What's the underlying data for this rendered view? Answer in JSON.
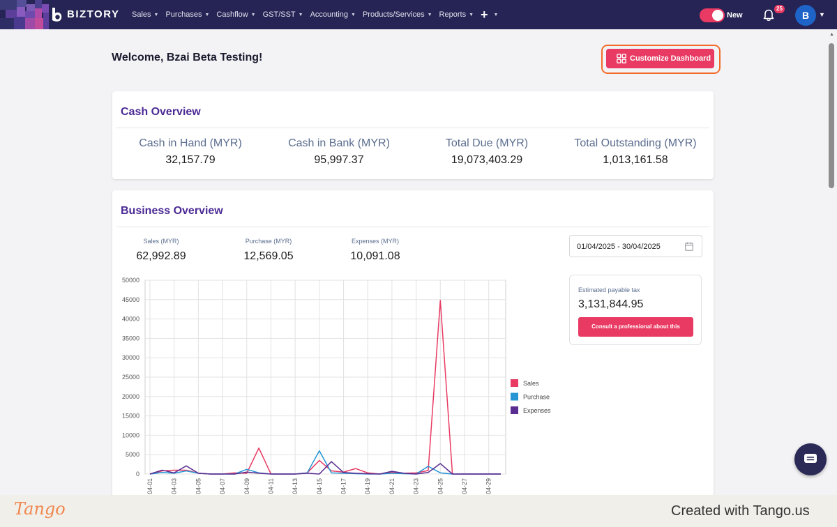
{
  "app": {
    "logo_text": "BIZTORY",
    "toggle_label": "New",
    "notification_count": "25",
    "avatar_initial": "B"
  },
  "nav": {
    "items": [
      "Sales",
      "Purchases",
      "Cashflow",
      "GST/SST",
      "Accounting",
      "Products/Services",
      "Reports"
    ],
    "plus": "+"
  },
  "page": {
    "welcome": "Welcome, Bzai Beta Testing!",
    "customize_label": "Customize Dashboard"
  },
  "cash_overview": {
    "title": "Cash Overview",
    "stats": [
      {
        "label": "Cash in Hand (MYR)",
        "value": "32,157.79"
      },
      {
        "label": "Cash in Bank (MYR)",
        "value": "95,997.37"
      },
      {
        "label": "Total Due (MYR)",
        "value": "19,073,403.29"
      },
      {
        "label": "Total Outstanding (MYR)",
        "value": "1,013,161.58"
      }
    ]
  },
  "business_overview": {
    "title": "Business Overview",
    "stats": [
      {
        "label": "Sales (MYR)",
        "value": "62,992.89"
      },
      {
        "label": "Purchase (MYR)",
        "value": "12,569.05"
      },
      {
        "label": "Expenses (MYR)",
        "value": "10,091.08"
      }
    ],
    "date_range": "01/04/2025 - 30/04/2025",
    "tax_label": "Estimated payable tax",
    "tax_value": "3,131,844.95",
    "tax_button": "Consult a professional about this"
  },
  "chart_data": {
    "type": "line",
    "title": "",
    "xlabel": "",
    "ylabel": "",
    "ylim": [
      0,
      50000
    ],
    "yticks": [
      0,
      5000,
      10000,
      15000,
      20000,
      25000,
      30000,
      35000,
      40000,
      45000,
      50000
    ],
    "x": [
      "04-01",
      "04-02",
      "04-03",
      "04-04",
      "04-05",
      "04-06",
      "04-07",
      "04-08",
      "04-09",
      "04-10",
      "04-11",
      "04-12",
      "04-13",
      "04-14",
      "04-15",
      "04-16",
      "04-17",
      "04-18",
      "04-19",
      "04-20",
      "04-21",
      "04-22",
      "04-23",
      "04-24",
      "04-25",
      "04-26",
      "04-27",
      "04-28",
      "04-29",
      "04-30"
    ],
    "xtick_labels": [
      "04-01",
      "04-03",
      "04-05",
      "04-07",
      "04-09",
      "04-11",
      "04-13",
      "04-15",
      "04-17",
      "04-19",
      "04-21",
      "04-23",
      "04-25",
      "04-27",
      "04-29"
    ],
    "legend_position": "right",
    "series": [
      {
        "name": "Sales",
        "color": "#e83a63",
        "values": [
          0,
          800,
          1000,
          1000,
          200,
          0,
          0,
          300,
          200,
          6700,
          0,
          0,
          0,
          300,
          3500,
          800,
          500,
          1400,
          300,
          0,
          400,
          200,
          300,
          900,
          44800,
          0,
          0,
          0,
          0,
          0
        ]
      },
      {
        "name": "Purchase",
        "color": "#2595d3",
        "values": [
          0,
          400,
          200,
          800,
          200,
          0,
          0,
          0,
          1200,
          300,
          0,
          0,
          0,
          300,
          6000,
          300,
          200,
          100,
          0,
          0,
          200,
          100,
          0,
          2000,
          300,
          0,
          0,
          0,
          0,
          0
        ]
      },
      {
        "name": "Expenses",
        "color": "#5a2d91",
        "values": [
          0,
          1000,
          300,
          2100,
          200,
          0,
          0,
          0,
          500,
          200,
          0,
          0,
          0,
          200,
          0,
          3200,
          400,
          200,
          100,
          0,
          700,
          200,
          0,
          400,
          2700,
          0,
          0,
          0,
          0,
          0
        ]
      }
    ]
  },
  "footer": {
    "brand": "Tango",
    "text": "Created with Tango.us"
  }
}
